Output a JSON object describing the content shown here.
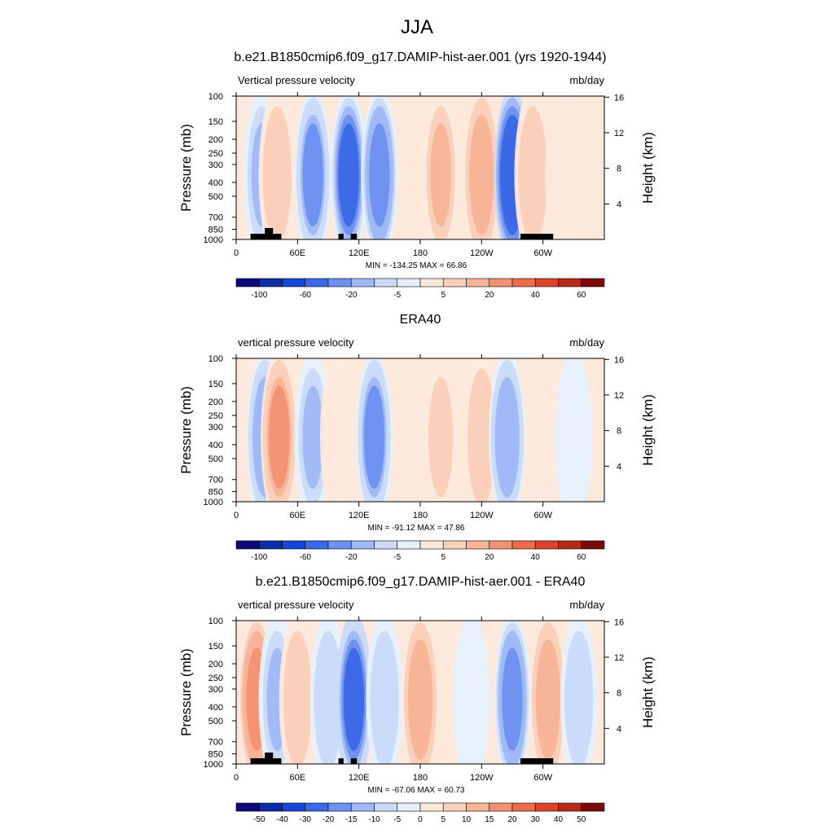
{
  "main_title": "JJA",
  "chart_data": [
    {
      "type": "heatmap",
      "title": "b.e21.B1850cmip6.f09_g17.DAMIP-hist-aer.001 (yrs 1920-1944)",
      "subtitle_left": "Vertical pressure velocity",
      "subtitle_right": "mb/day",
      "ylabel": "Pressure (mb)",
      "ylabel_right": "Height (km)",
      "x_ticks": [
        "0",
        "60E",
        "120E",
        "180",
        "120W",
        "60W"
      ],
      "y_ticks": [
        "100",
        "150",
        "200",
        "250",
        "300",
        "400",
        "500",
        "700",
        "850",
        "1000"
      ],
      "y_ticks_right": [
        "16",
        "12",
        "8",
        "4"
      ],
      "stats": "MIN = -134.25  MAX =  66.86",
      "colorbar_labels": [
        "-100",
        "-60",
        "-20",
        "-5",
        "5",
        "20",
        "40",
        "60"
      ],
      "field": [
        {
          "lon": 15,
          "value": 4
        },
        {
          "lon": 25,
          "value": -25
        },
        {
          "lon": 40,
          "value": 20
        },
        {
          "lon": 75,
          "value": -35
        },
        {
          "lon": 110,
          "value": -45
        },
        {
          "lon": 140,
          "value": -40
        },
        {
          "lon": 200,
          "value": 25
        },
        {
          "lon": 240,
          "value": 30
        },
        {
          "lon": 270,
          "value": -55
        },
        {
          "lon": 290,
          "value": 22
        },
        {
          "lon": 320,
          "value": 6
        }
      ]
    },
    {
      "type": "heatmap",
      "title": "ERA40",
      "subtitle_left": "vertical pressure velocity",
      "subtitle_right": "mb/day",
      "ylabel": "Pressure (mb)",
      "ylabel_right": "Height (km)",
      "x_ticks": [
        "0",
        "60E",
        "120E",
        "180",
        "120W",
        "60W"
      ],
      "y_ticks": [
        "100",
        "150",
        "200",
        "250",
        "300",
        "400",
        "500",
        "700",
        "850",
        "1000"
      ],
      "y_ticks_right": [
        "16",
        "12",
        "8",
        "4"
      ],
      "stats": "MIN = -91.12  MAX =  47.86",
      "colorbar_labels": [
        "-100",
        "-60",
        "-20",
        "-5",
        "5",
        "20",
        "40",
        "60"
      ],
      "field": [
        {
          "lon": 15,
          "value": 5
        },
        {
          "lon": 28,
          "value": -30
        },
        {
          "lon": 42,
          "value": 35
        },
        {
          "lon": 75,
          "value": -25
        },
        {
          "lon": 100,
          "value": 8
        },
        {
          "lon": 135,
          "value": -35
        },
        {
          "lon": 200,
          "value": 15
        },
        {
          "lon": 240,
          "value": 20
        },
        {
          "lon": 265,
          "value": -30
        },
        {
          "lon": 300,
          "value": 3
        },
        {
          "lon": 330,
          "value": -2
        }
      ]
    },
    {
      "type": "heatmap",
      "title": "b.e21.B1850cmip6.f09_g17.DAMIP-hist-aer.001 - ERA40",
      "subtitle_left": "vertical pressure velocity",
      "subtitle_right": "mb/day",
      "ylabel": "Pressure (mb)",
      "ylabel_right": "Height (km)",
      "x_ticks": [
        "0",
        "60E",
        "120E",
        "180",
        "120W",
        "60W"
      ],
      "y_ticks": [
        "100",
        "150",
        "200",
        "250",
        "300",
        "400",
        "500",
        "700",
        "850",
        "1000"
      ],
      "y_ticks_right": [
        "16",
        "12",
        "8",
        "4"
      ],
      "stats": "MIN = -67.06  MAX =  60.73",
      "colorbar_labels": [
        "-50",
        "-40",
        "-30",
        "-20",
        "-15",
        "-10",
        "-5",
        "0",
        "5",
        "10",
        "15",
        "20",
        "30",
        "40",
        "50"
      ],
      "field": [
        {
          "lon": 20,
          "value": 30
        },
        {
          "lon": 40,
          "value": -20
        },
        {
          "lon": 60,
          "value": 15
        },
        {
          "lon": 90,
          "value": -15
        },
        {
          "lon": 115,
          "value": -40
        },
        {
          "lon": 145,
          "value": -15
        },
        {
          "lon": 180,
          "value": 25
        },
        {
          "lon": 230,
          "value": -5
        },
        {
          "lon": 270,
          "value": -30
        },
        {
          "lon": 305,
          "value": 25
        },
        {
          "lon": 335,
          "value": -15
        }
      ]
    }
  ],
  "colors": {
    "neg": [
      "#0a0a7a",
      "#0b2ea6",
      "#1646d8",
      "#3a68e6",
      "#6e90f0",
      "#9fb8f6",
      "#c9dbf9",
      "#e6f0fc"
    ],
    "pos": [
      "#fde9dc",
      "#fbd0b9",
      "#f8b497",
      "#f39273",
      "#ec6b4a",
      "#db4428",
      "#b52a17",
      "#7d0a0a"
    ],
    "land": "#000000"
  }
}
